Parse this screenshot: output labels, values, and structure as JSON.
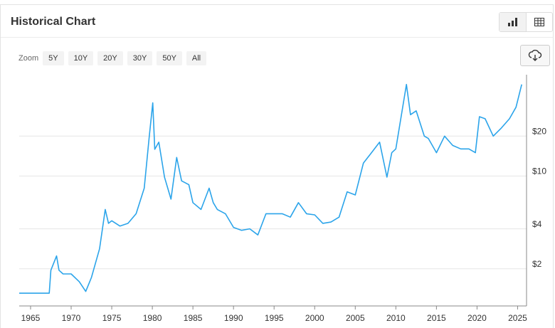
{
  "header": {
    "title": "Historical Chart"
  },
  "zoom": {
    "label": "Zoom",
    "buttons": [
      "5Y",
      "10Y",
      "20Y",
      "30Y",
      "50Y",
      "All"
    ]
  },
  "chart_data": {
    "type": "line",
    "log_scale": true,
    "grid": true,
    "color": "#2ba4ea",
    "x": [
      1963.6,
      1967.3,
      1967.5,
      1968.2,
      1968.5,
      1969,
      1970,
      1971,
      1971.8,
      1972.5,
      1973.5,
      1974.2,
      1974.6,
      1975,
      1976,
      1977,
      1978,
      1979,
      1979.6,
      1980.05,
      1980.3,
      1980.8,
      1981.5,
      1982.3,
      1983,
      1983.6,
      1984.5,
      1985,
      1986,
      1987,
      1987.5,
      1988,
      1989,
      1990,
      1991,
      1992,
      1993,
      1994,
      1995,
      1996,
      1997,
      1998,
      1999,
      2000,
      2001,
      2002,
      2003,
      2004,
      2005,
      2006,
      2007,
      2008,
      2008.9,
      2009.5,
      2010,
      2011.3,
      2011.8,
      2012.5,
      2013.5,
      2014,
      2015,
      2016,
      2017,
      2018,
      2019,
      2019.8,
      2020.3,
      2021,
      2022,
      2023,
      2024,
      2024.8,
      2025.5
    ],
    "values": [
      1.31,
      1.31,
      1.95,
      2.5,
      1.95,
      1.83,
      1.83,
      1.6,
      1.35,
      1.72,
      2.83,
      5.6,
      4.4,
      4.6,
      4.2,
      4.4,
      5.2,
      8.1,
      19.2,
      35.6,
      15.9,
      18,
      9.8,
      6.7,
      13.8,
      9.2,
      8.6,
      6.3,
      5.6,
      8.1,
      6.3,
      5.6,
      5.2,
      4.1,
      3.9,
      4.0,
      3.6,
      5.2,
      5.2,
      5.2,
      4.9,
      6.3,
      5.2,
      5.1,
      4.4,
      4.5,
      4.9,
      7.6,
      7.2,
      12.5,
      15,
      18,
      9.8,
      15,
      16,
      49,
      29,
      31,
      20,
      19.2,
      15,
      20,
      17,
      16,
      16,
      15,
      28,
      27,
      20,
      23,
      27,
      33,
      49
    ],
    "xlim": [
      1963.6,
      2026.1
    ],
    "xticks": [
      1965,
      1970,
      1975,
      1980,
      1985,
      1990,
      1995,
      2000,
      2005,
      2010,
      2015,
      2020,
      2025
    ],
    "ylim": [
      1.05,
      58
    ],
    "yticks": [
      {
        "value": 2,
        "label": "$2"
      },
      {
        "value": 4,
        "label": "$4"
      },
      {
        "value": 10,
        "label": "$10"
      },
      {
        "value": 20,
        "label": "$20"
      }
    ]
  }
}
